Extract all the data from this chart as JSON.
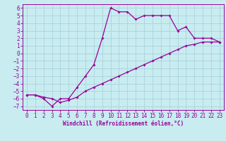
{
  "xlabel": "Windchill (Refroidissement éolien,°C)",
  "bg_color": "#c8ecf0",
  "line_color": "#990099",
  "grid_color": "#aad4dc",
  "xlim": [
    -0.5,
    23.5
  ],
  "ylim": [
    -7.5,
    6.5
  ],
  "xticks": [
    0,
    1,
    2,
    3,
    4,
    5,
    6,
    7,
    8,
    9,
    10,
    11,
    12,
    13,
    14,
    15,
    16,
    17,
    18,
    19,
    20,
    21,
    22,
    23
  ],
  "yticks": [
    -7,
    -6,
    -5,
    -4,
    -3,
    -2,
    -1,
    0,
    1,
    2,
    3,
    4,
    5,
    6
  ],
  "upper_x": [
    0,
    1,
    2,
    3,
    4,
    5,
    6,
    7,
    8,
    9,
    10,
    11,
    12,
    13,
    14,
    15,
    16,
    17,
    18,
    19,
    20,
    21,
    22,
    23
  ],
  "upper_y": [
    -5.5,
    -5.5,
    -6.0,
    -7.0,
    -6.0,
    -6.0,
    -4.5,
    -3.0,
    -1.5,
    2.0,
    6.0,
    5.5,
    5.5,
    4.5,
    5.0,
    5.0,
    5.0,
    5.0,
    3.0,
    3.5,
    2.0,
    2.0,
    2.0,
    1.5
  ],
  "lower_x": [
    0,
    1,
    2,
    3,
    4,
    5,
    6,
    7,
    8,
    9,
    10,
    11,
    12,
    13,
    14,
    15,
    16,
    17,
    18,
    19,
    20,
    21,
    22,
    23
  ],
  "lower_y": [
    -5.5,
    -5.5,
    -5.8,
    -6.0,
    -6.5,
    -6.2,
    -5.8,
    -5.0,
    -4.5,
    -4.0,
    -3.5,
    -3.0,
    -2.5,
    -2.0,
    -1.5,
    -1.0,
    -0.5,
    0.0,
    0.5,
    1.0,
    1.2,
    1.5,
    1.5,
    1.5
  ],
  "tick_fontsize": 5.5,
  "xlabel_fontsize": 5.5
}
